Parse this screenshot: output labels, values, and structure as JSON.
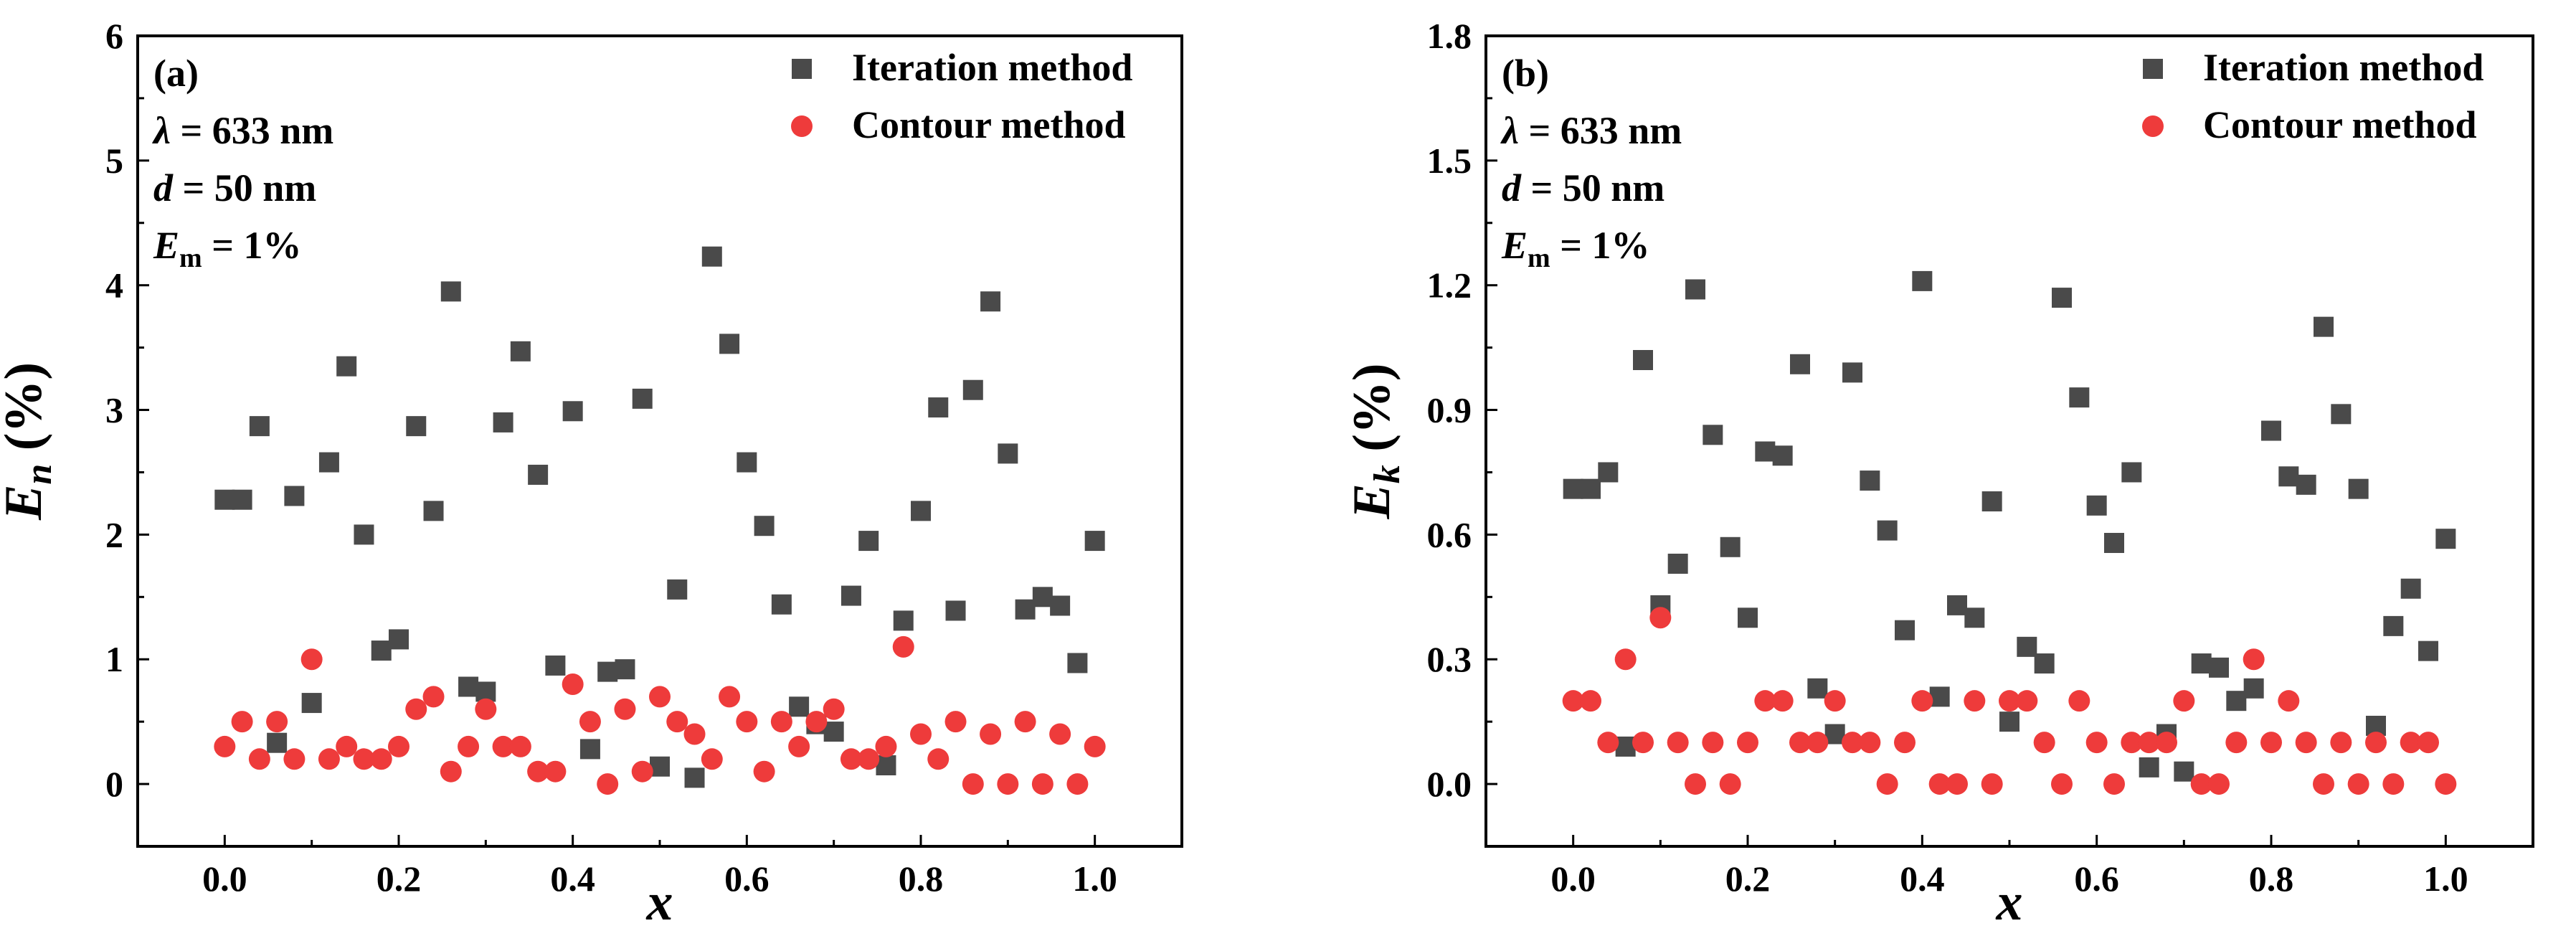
{
  "chart_data": [
    {
      "type": "scatter",
      "panel_label": "(a)",
      "annotations": {
        "lambda_symbol": "λ",
        "lambda_text": " = 633 nm",
        "d_symbol": "d",
        "d_text": " = 50 nm",
        "em_symbol": "E",
        "em_sub": "m",
        "em_text": " = 1%"
      },
      "ylabel": {
        "main": "E",
        "sub": "n",
        "unit": " (%)"
      },
      "xlabel": "x",
      "xlim": [
        -0.1,
        1.1
      ],
      "ylim": [
        -0.5,
        6
      ],
      "xticks": [
        "0.0",
        "0.2",
        "0.4",
        "0.6",
        "0.8",
        "1.0"
      ],
      "yticks": [
        "0",
        "1",
        "2",
        "3",
        "4",
        "5",
        "6"
      ],
      "legend_position": "top-right",
      "series": [
        {
          "name": "Iteration method",
          "marker": "square",
          "color": "#4a4a4a",
          "x": [
            0.0,
            0.02,
            0.04,
            0.06,
            0.08,
            0.1,
            0.12,
            0.14,
            0.16,
            0.18,
            0.2,
            0.22,
            0.24,
            0.26,
            0.28,
            0.3,
            0.32,
            0.34,
            0.36,
            0.38,
            0.4,
            0.42,
            0.44,
            0.46,
            0.48,
            0.5,
            0.52,
            0.54,
            0.56,
            0.58,
            0.6,
            0.62,
            0.64,
            0.66,
            0.68,
            0.7,
            0.72,
            0.74,
            0.76,
            0.78,
            0.8,
            0.82,
            0.84,
            0.86,
            0.88,
            0.9,
            0.92,
            0.94,
            0.96,
            0.98,
            1.0
          ],
          "y": [
            2.28,
            2.28,
            2.87,
            0.33,
            2.31,
            0.65,
            2.58,
            3.35,
            2.0,
            1.07,
            1.16,
            2.87,
            2.19,
            3.95,
            0.78,
            0.74,
            2.9,
            3.47,
            2.48,
            0.95,
            2.99,
            0.28,
            0.9,
            0.92,
            3.09,
            0.14,
            1.56,
            0.05,
            4.23,
            3.53,
            2.58,
            2.07,
            1.44,
            0.62,
            0.48,
            0.42,
            1.51,
            1.95,
            0.15,
            1.31,
            2.19,
            3.02,
            1.39,
            3.16,
            3.87,
            2.65,
            1.4,
            1.5,
            1.43,
            0.97,
            1.95
          ]
        },
        {
          "name": "Contour method",
          "marker": "circle",
          "color": "#ee3b3b",
          "x": [
            0.0,
            0.02,
            0.04,
            0.06,
            0.08,
            0.1,
            0.12,
            0.14,
            0.16,
            0.18,
            0.2,
            0.22,
            0.24,
            0.26,
            0.28,
            0.3,
            0.32,
            0.34,
            0.36,
            0.38,
            0.4,
            0.42,
            0.44,
            0.46,
            0.48,
            0.5,
            0.52,
            0.54,
            0.56,
            0.58,
            0.6,
            0.62,
            0.64,
            0.66,
            0.68,
            0.7,
            0.72,
            0.74,
            0.76,
            0.78,
            0.8,
            0.82,
            0.84,
            0.86,
            0.88,
            0.9,
            0.92,
            0.94,
            0.96,
            0.98,
            1.0
          ],
          "y": [
            0.3,
            0.5,
            0.2,
            0.5,
            0.2,
            1.0,
            0.2,
            0.3,
            0.2,
            0.2,
            0.3,
            0.6,
            0.7,
            0.1,
            0.3,
            0.6,
            0.3,
            0.3,
            0.1,
            0.1,
            0.8,
            0.5,
            0.0,
            0.6,
            0.1,
            0.7,
            0.5,
            0.4,
            0.2,
            0.7,
            0.5,
            0.1,
            0.5,
            0.3,
            0.5,
            0.6,
            0.2,
            0.2,
            0.3,
            1.1,
            0.4,
            0.2,
            0.5,
            0.0,
            0.4,
            0.0,
            0.5,
            0.0,
            0.4,
            0.0,
            0.3
          ]
        }
      ]
    },
    {
      "type": "scatter",
      "panel_label": "(b)",
      "annotations": {
        "lambda_symbol": "λ",
        "lambda_text": " = 633 nm",
        "d_symbol": "d",
        "d_text": " = 50 nm",
        "em_symbol": "E",
        "em_sub": "m",
        "em_text": " = 1%"
      },
      "ylabel": {
        "main": "E",
        "sub": "k",
        "unit": " (%)"
      },
      "xlabel": "x",
      "xlim": [
        -0.1,
        1.1
      ],
      "ylim": [
        -0.15,
        1.8
      ],
      "xticks": [
        "0.0",
        "0.2",
        "0.4",
        "0.6",
        "0.8",
        "1.0"
      ],
      "yticks": [
        "0.0",
        "0.3",
        "0.6",
        "0.9",
        "1.2",
        "1.5",
        "1.8"
      ],
      "legend_position": "top-right",
      "series": [
        {
          "name": "Iteration method",
          "marker": "square",
          "color": "#4a4a4a",
          "x": [
            0.0,
            0.02,
            0.04,
            0.06,
            0.08,
            0.1,
            0.12,
            0.14,
            0.16,
            0.18,
            0.2,
            0.22,
            0.24,
            0.26,
            0.28,
            0.3,
            0.32,
            0.34,
            0.36,
            0.38,
            0.4,
            0.42,
            0.44,
            0.46,
            0.48,
            0.5,
            0.52,
            0.54,
            0.56,
            0.58,
            0.6,
            0.62,
            0.64,
            0.66,
            0.68,
            0.7,
            0.72,
            0.74,
            0.76,
            0.78,
            0.8,
            0.82,
            0.84,
            0.86,
            0.88,
            0.9,
            0.92,
            0.94,
            0.96,
            0.98,
            1.0
          ],
          "y": [
            0.71,
            0.71,
            0.75,
            0.09,
            1.02,
            0.43,
            0.53,
            1.19,
            0.84,
            0.57,
            0.4,
            0.8,
            0.79,
            1.01,
            0.23,
            0.12,
            0.99,
            0.73,
            0.61,
            0.37,
            1.21,
            0.21,
            0.43,
            0.4,
            0.68,
            0.15,
            0.33,
            0.29,
            1.17,
            0.93,
            0.67,
            0.58,
            0.75,
            0.04,
            0.12,
            0.03,
            0.29,
            0.28,
            0.2,
            0.23,
            0.85,
            0.74,
            0.72,
            1.1,
            0.89,
            0.71,
            0.14,
            0.38,
            0.47,
            0.32,
            0.59
          ]
        },
        {
          "name": "Contour method",
          "marker": "circle",
          "color": "#ee3b3b",
          "x": [
            0.0,
            0.02,
            0.04,
            0.06,
            0.08,
            0.1,
            0.12,
            0.14,
            0.16,
            0.18,
            0.2,
            0.22,
            0.24,
            0.26,
            0.28,
            0.3,
            0.32,
            0.34,
            0.36,
            0.38,
            0.4,
            0.42,
            0.44,
            0.46,
            0.48,
            0.5,
            0.52,
            0.54,
            0.56,
            0.58,
            0.6,
            0.62,
            0.64,
            0.66,
            0.68,
            0.7,
            0.72,
            0.74,
            0.76,
            0.78,
            0.8,
            0.82,
            0.84,
            0.86,
            0.88,
            0.9,
            0.92,
            0.94,
            0.96,
            0.98,
            1.0
          ],
          "y": [
            0.2,
            0.2,
            0.1,
            0.3,
            0.1,
            0.4,
            0.1,
            0.0,
            0.1,
            0.0,
            0.1,
            0.2,
            0.2,
            0.1,
            0.1,
            0.2,
            0.1,
            0.1,
            0.0,
            0.1,
            0.2,
            0.0,
            0.0,
            0.2,
            0.0,
            0.2,
            0.2,
            0.1,
            0.0,
            0.2,
            0.1,
            0.0,
            0.1,
            0.1,
            0.1,
            0.2,
            0.0,
            0.0,
            0.1,
            0.3,
            0.1,
            0.2,
            0.1,
            0.0,
            0.1,
            0.0,
            0.1,
            0.0,
            0.1,
            0.1,
            0.0
          ]
        }
      ]
    }
  ]
}
